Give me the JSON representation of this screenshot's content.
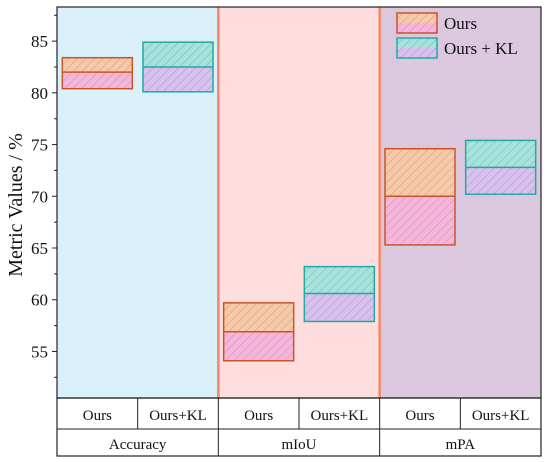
{
  "chart_data": {
    "type": "box",
    "ylabel": "Metric Values / %",
    "ylim": [
      50.5,
      88.3
    ],
    "yticks": [
      55,
      60,
      65,
      70,
      75,
      80,
      85
    ],
    "groups": [
      {
        "label": "Accuracy",
        "background": "#daf0fb"
      },
      {
        "label": "mIoU",
        "background": "#fddddd"
      },
      {
        "label": "mPA",
        "background": "#dcc8de"
      }
    ],
    "subcategory_labels": [
      "Ours",
      "Ours+KL"
    ],
    "series": [
      {
        "name": "Ours",
        "edge_color": "#c8552a",
        "upper_fill": "#f8c9a8",
        "lower_fill": "#f6b6dc",
        "boxes": [
          {
            "group": "Accuracy",
            "low": 80.4,
            "mid": 82.0,
            "high": 83.4
          },
          {
            "group": "mIoU",
            "low": 54.1,
            "mid": 56.9,
            "high": 59.7
          },
          {
            "group": "mPA",
            "low": 65.3,
            "mid": 70.0,
            "high": 74.6
          }
        ]
      },
      {
        "name": "Ours + KL",
        "edge_color": "#22aaa2",
        "upper_fill": "#a6e3dc",
        "lower_fill": "#d9c1ef",
        "boxes": [
          {
            "group": "Accuracy",
            "low": 80.1,
            "mid": 82.5,
            "high": 84.9
          },
          {
            "group": "mIoU",
            "low": 57.9,
            "mid": 60.6,
            "high": 63.2
          },
          {
            "group": "mPA",
            "low": 70.2,
            "mid": 72.8,
            "high": 75.4
          }
        ]
      }
    ],
    "legend": {
      "position": "top-right",
      "entries": [
        "Ours",
        "Ours + KL"
      ]
    },
    "separator_color": "#f08a6a",
    "grid": false
  }
}
